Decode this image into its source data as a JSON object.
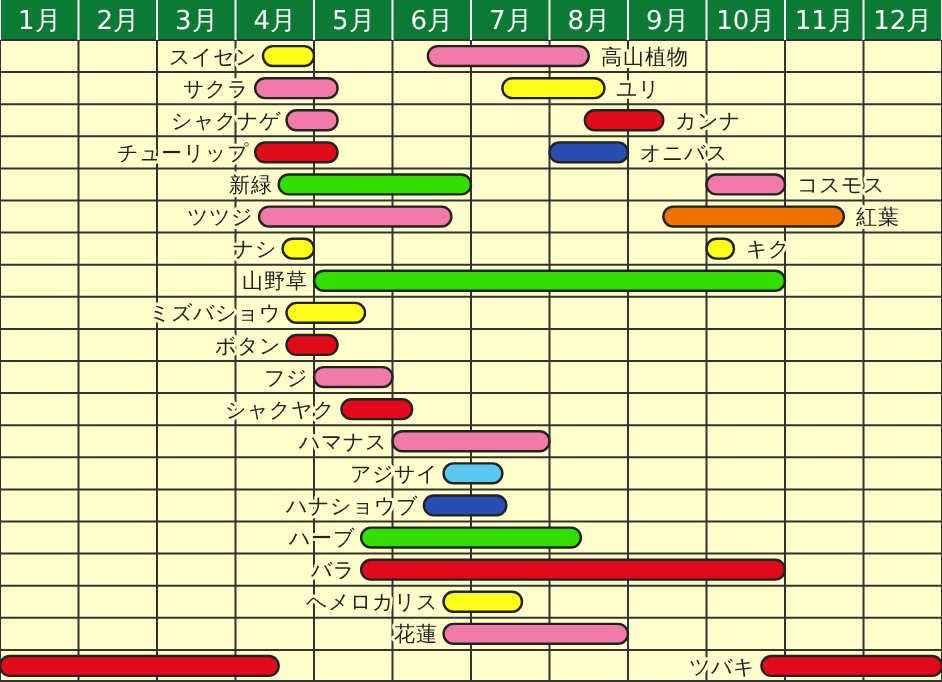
{
  "chart_data": {
    "type": "bar",
    "orientation": "horizontal",
    "categories": [
      null,
      null,
      null,
      null,
      null,
      null,
      null,
      null,
      null,
      null,
      null,
      null,
      null,
      null,
      null,
      null,
      null,
      null,
      null,
      null
    ],
    "xlim": [
      0,
      12
    ],
    "xticks": [
      {
        "value": 0,
        "label": null
      },
      {
        "value": 0.5,
        "label": "1月"
      },
      {
        "value": 1,
        "label": null
      },
      {
        "value": 1.5,
        "label": "2月"
      },
      {
        "value": 2,
        "label": null
      },
      {
        "value": 2.5,
        "label": "3月"
      },
      {
        "value": 3,
        "label": null
      },
      {
        "value": 3.5,
        "label": "4月"
      },
      {
        "value": 4,
        "label": null
      },
      {
        "value": 4.5,
        "label": "5月"
      },
      {
        "value": 5,
        "label": null
      },
      {
        "value": 5.5,
        "label": "6月"
      },
      {
        "value": 6,
        "label": null
      },
      {
        "value": 6.5,
        "label": "7月"
      },
      {
        "value": 7,
        "label": null
      },
      {
        "value": 7.5,
        "label": "8月"
      },
      {
        "value": 8,
        "label": null
      },
      {
        "value": 8.5,
        "label": "9月"
      },
      {
        "value": 9,
        "label": null
      },
      {
        "value": 9.5,
        "label": "10月"
      },
      {
        "value": 10,
        "label": null
      },
      {
        "value": 10.5,
        "label": "11月"
      },
      {
        "value": 11,
        "label": null
      },
      {
        "value": 11.5,
        "label": "12月"
      },
      {
        "value": 12,
        "label": null
      }
    ],
    "grid": true,
    "series": [
      {
        "base": [
          3.35,
          3.25,
          3.65,
          3.25,
          3.55,
          3.3,
          3.6,
          4.0,
          3.65,
          3.65,
          4.0,
          4.35,
          5.0,
          5.65,
          5.4,
          4.6,
          4.6,
          5.65,
          5.65,
          0
        ],
        "values": [
          0.65,
          1.05,
          0.65,
          1.05,
          2.45,
          2.45,
          0.4,
          6.0,
          1.0,
          0.65,
          1.0,
          0.9,
          2.0,
          0.75,
          1.05,
          2.8,
          5.4,
          1.0,
          2.35,
          3.55
        ],
        "colors": [
          "#fdfd1a",
          "#f07aa8",
          "#f07aa8",
          "#e00a1a",
          "#33dd00",
          "#f07aa8",
          "#fdfd1a",
          "#33dd00",
          "#fdfd1a",
          "#e00a1a",
          "#f07aa8",
          "#e00a1a",
          "#f07aa8",
          "#5bc8f0",
          "#2a4eb0",
          "#33dd00",
          "#e00a1a",
          "#fdfd1a",
          "#f07aa8",
          "#e00a1a"
        ],
        "value_labels": [
          "スイセン",
          "サクラ",
          "シャクナゲ",
          "チューリップ",
          "新緑",
          "ツツジ",
          "ナシ",
          "山野草",
          "ミズバショウ",
          "ボタン",
          "フジ",
          "シャクヤク",
          "ハマナス",
          "アジサイ",
          "ハナショウブ",
          "ハーブ",
          "バラ",
          "ヘメロカリス",
          "花蓮",
          null
        ]
      },
      {
        "base": [
          5.45,
          6.4,
          7.45,
          7.0,
          9.0,
          8.45,
          9.0,
          null,
          null,
          null,
          null,
          null,
          null,
          null,
          null,
          null,
          null,
          null,
          null,
          9.7
        ],
        "values": [
          2.05,
          1.3,
          1.0,
          1.0,
          1.0,
          2.3,
          0.35,
          null,
          null,
          null,
          null,
          null,
          null,
          null,
          null,
          null,
          null,
          null,
          null,
          2.3
        ],
        "colors": [
          "#f07aa8",
          "#fdfd1a",
          "#e00a1a",
          "#2a4eb0",
          "#f07aa8",
          "#ee7000",
          "#fdfd1a",
          null,
          null,
          null,
          null,
          null,
          null,
          null,
          null,
          null,
          null,
          null,
          null,
          "#e00a1a"
        ],
        "value_labels": [
          "高山植物",
          "ユリ",
          "カンナ",
          "オニバス",
          "コスモス",
          "紅葉",
          "キク",
          null,
          null,
          null,
          null,
          null,
          null,
          null,
          null,
          null,
          null,
          null,
          null,
          "ツバキ"
        ]
      }
    ]
  }
}
